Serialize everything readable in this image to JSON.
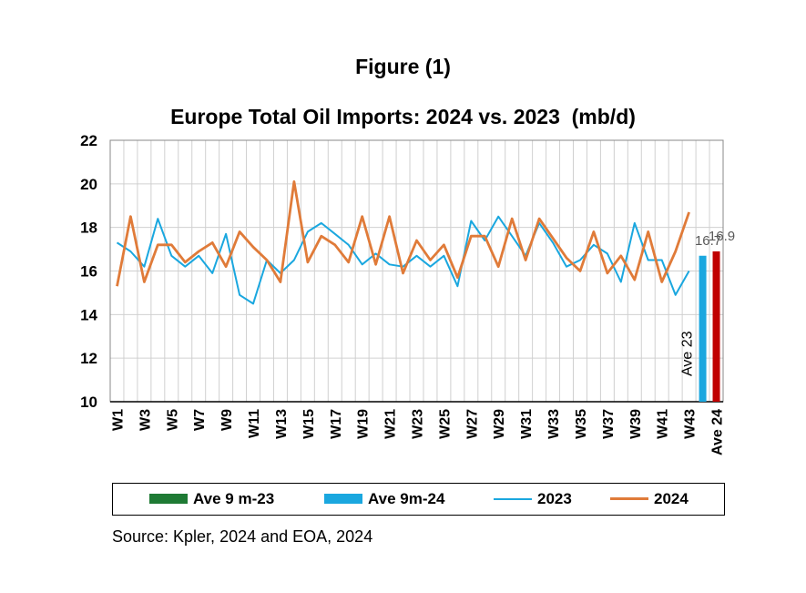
{
  "figure_label": "Figure (1)",
  "chart_data": {
    "type": "line",
    "title": "Europe Total Oil Imports: 2024 vs. 2023  (mb/d)",
    "xlabel": "",
    "ylabel": "",
    "ylim": [
      10,
      22
    ],
    "yticks": [
      10,
      12,
      14,
      16,
      18,
      20,
      22
    ],
    "grid": true,
    "legend_position": "bottom",
    "categories": [
      "W1",
      "W2",
      "W3",
      "W4",
      "W5",
      "W6",
      "W7",
      "W8",
      "W9",
      "W10",
      "W11",
      "W12",
      "W13",
      "W14",
      "W15",
      "W16",
      "W17",
      "W18",
      "W19",
      "W20",
      "W21",
      "W22",
      "W23",
      "W24",
      "W25",
      "W26",
      "W27",
      "W28",
      "W29",
      "W30",
      "W31",
      "W32",
      "W33",
      "W34",
      "W35",
      "W36",
      "W37",
      "W38",
      "W39",
      "W40",
      "W41",
      "W42",
      "W43"
    ],
    "tick_labels": [
      "W1",
      "W3",
      "W5",
      "W7",
      "W9",
      "W11",
      "W13",
      "W15",
      "W17",
      "W19",
      "W21",
      "W23",
      "W25",
      "W27",
      "W29",
      "W31",
      "W33",
      "W35",
      "W37",
      "W39",
      "W41",
      "W43"
    ],
    "series": [
      {
        "name": "2023",
        "color": "#1aa7df",
        "values": [
          17.3,
          16.9,
          16.2,
          18.4,
          16.7,
          16.2,
          16.7,
          15.9,
          17.7,
          14.9,
          14.5,
          16.5,
          15.9,
          16.5,
          17.8,
          18.2,
          17.7,
          17.2,
          16.3,
          16.8,
          16.3,
          16.2,
          16.7,
          16.2,
          16.7,
          15.3,
          18.3,
          17.4,
          18.5,
          17.6,
          16.7,
          18.2,
          17.3,
          16.2,
          16.5,
          17.2,
          16.8,
          15.5,
          18.2,
          16.5,
          16.5,
          14.9,
          16.0
        ]
      },
      {
        "name": "2024",
        "color": "#e07b39",
        "values": [
          15.3,
          18.5,
          15.5,
          17.2,
          17.2,
          16.4,
          16.9,
          17.3,
          16.2,
          17.8,
          17.1,
          16.5,
          15.5,
          20.1,
          16.4,
          17.6,
          17.2,
          16.4,
          18.5,
          16.3,
          18.5,
          15.9,
          17.4,
          16.5,
          17.2,
          15.7,
          17.6,
          17.6,
          16.2,
          18.4,
          16.5,
          18.4,
          17.5,
          16.6,
          16.0,
          17.8,
          15.9,
          16.7,
          15.6,
          17.8,
          15.5,
          16.9,
          18.7
        ]
      }
    ],
    "averages": [
      {
        "category": "Ave 23",
        "value": 16.7,
        "label": "16.7",
        "color": "#1aa7df"
      },
      {
        "category": "Ave 24",
        "value": 16.9,
        "label": "16.9",
        "color": "#c00000"
      }
    ],
    "legend": [
      {
        "label": "Ave 9 m-23",
        "kind": "bar",
        "color": "#1e7a34"
      },
      {
        "label": "Ave 9m-24",
        "kind": "bar",
        "color": "#1aa7df"
      },
      {
        "label": "2023",
        "kind": "line",
        "color": "#1aa7df"
      },
      {
        "label": "2024",
        "kind": "line",
        "color": "#e07b39"
      }
    ]
  },
  "source_note": "Source: Kpler, 2024 and EOA, 2024"
}
